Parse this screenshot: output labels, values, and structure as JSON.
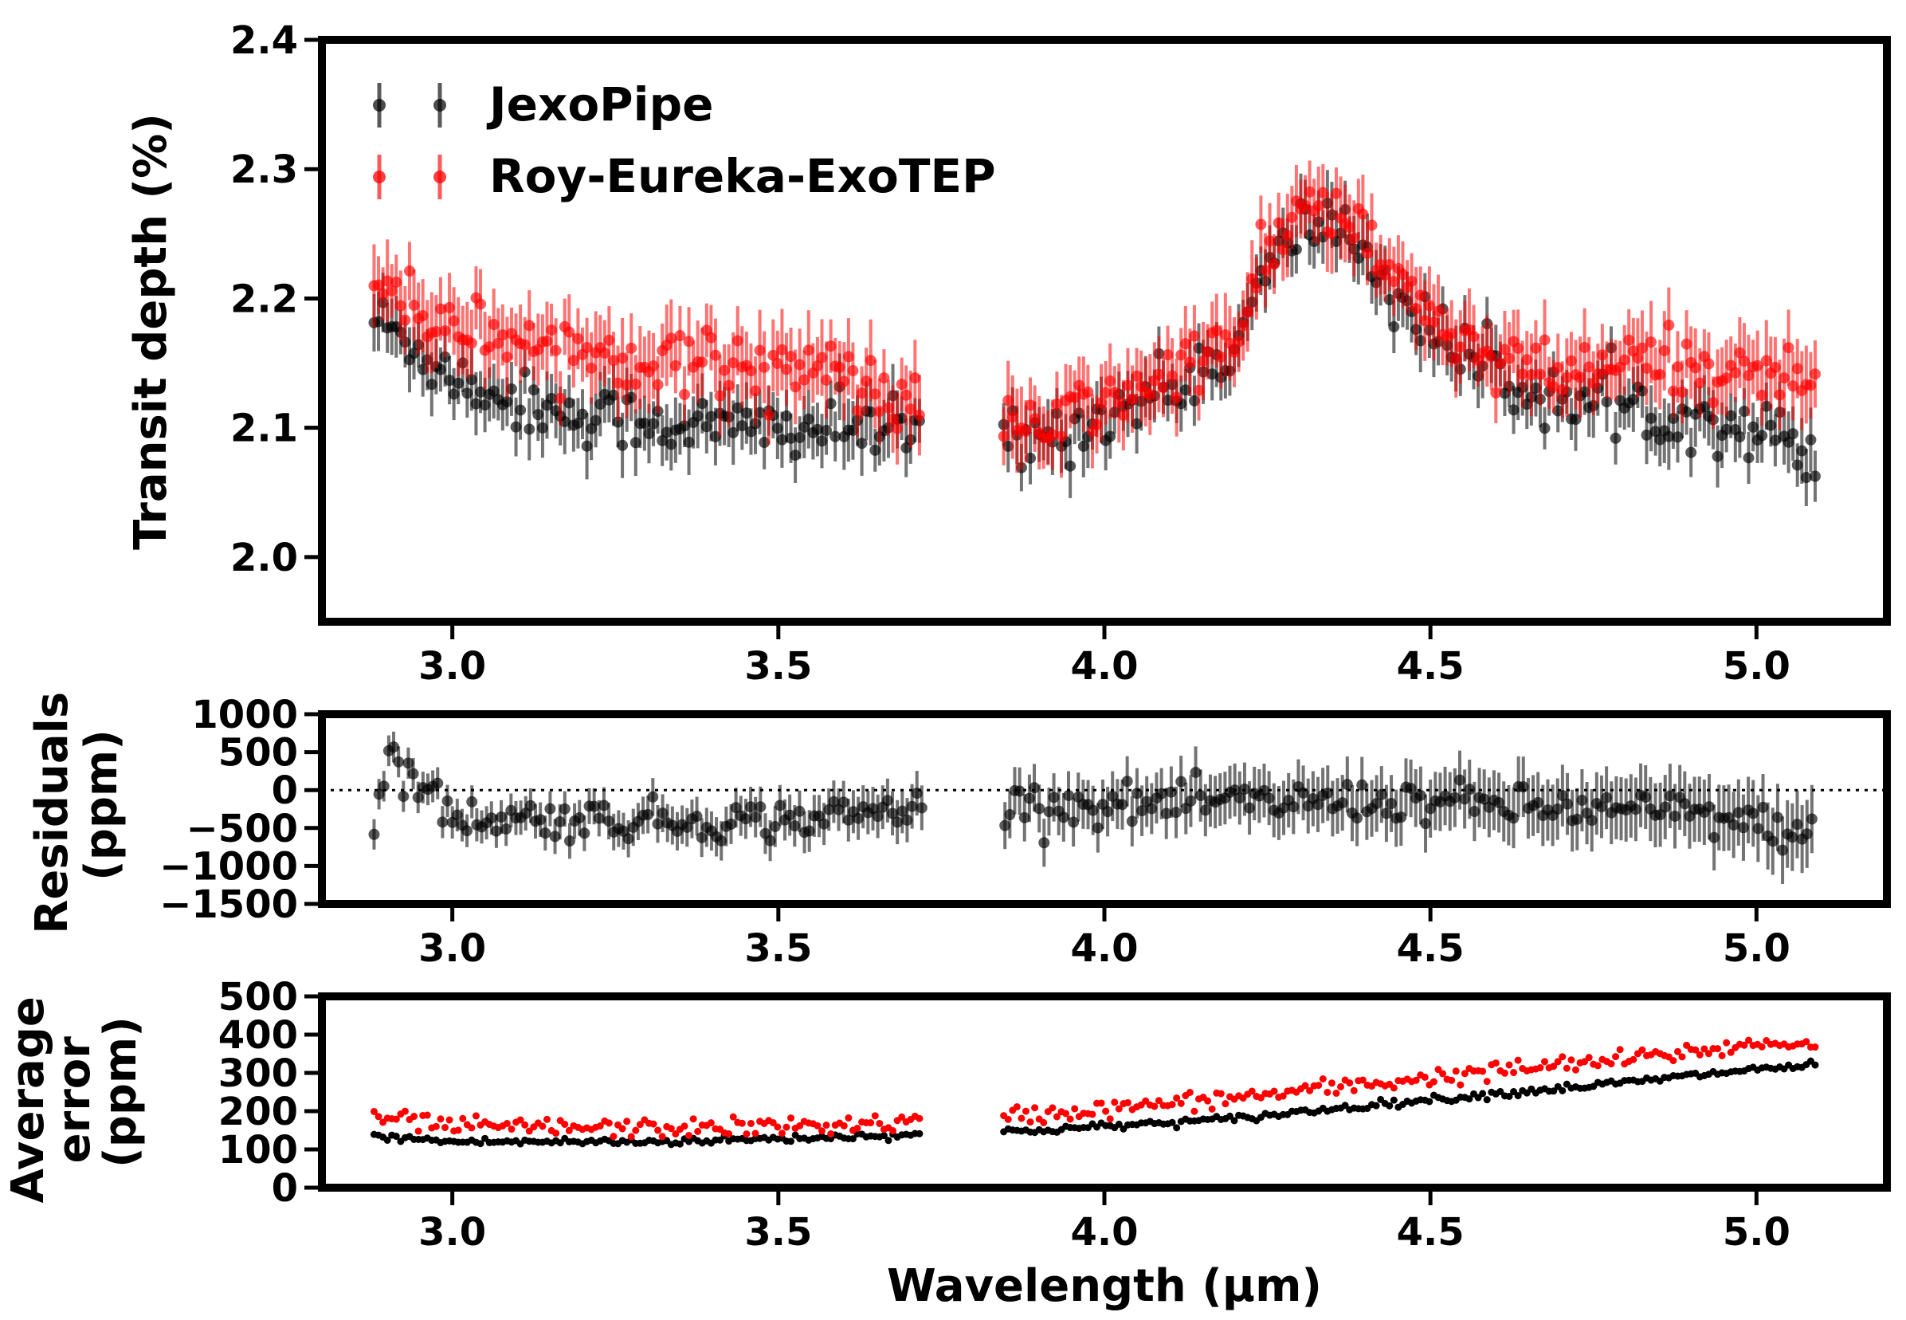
{
  "chart_data": [
    {
      "panel": "top",
      "type": "scatter",
      "ylabel": "Transit depth (%)",
      "xlim": [
        2.8,
        5.2
      ],
      "ylim": [
        1.95,
        2.4
      ],
      "xticks": [
        "3.0",
        "3.5",
        "4.0",
        "4.5",
        "5.0"
      ],
      "xtick_values": [
        3.0,
        3.5,
        4.0,
        4.5,
        5.0
      ],
      "yticks": [
        "2.0",
        "2.1",
        "2.2",
        "2.3",
        "2.4"
      ],
      "ytick_values": [
        2.0,
        2.1,
        2.2,
        2.3,
        2.4
      ],
      "legend_position": "top-left",
      "gap": [
        3.72,
        3.84
      ],
      "series": [
        {
          "name": "JexoPipe",
          "color": "#000000",
          "x_range": [
            2.88,
            5.09
          ],
          "errorbar": 0.02,
          "shape_x": [
            2.88,
            2.95,
            3.0,
            3.1,
            3.2,
            3.3,
            3.4,
            3.5,
            3.6,
            3.71,
            3.84,
            3.9,
            4.0,
            4.1,
            4.2,
            4.25,
            4.3,
            4.35,
            4.4,
            4.45,
            4.5,
            4.6,
            4.7,
            4.8,
            4.9,
            5.0,
            5.09
          ],
          "shape_y": [
            2.185,
            2.16,
            2.14,
            2.12,
            2.11,
            2.105,
            2.1,
            2.1,
            2.1,
            2.095,
            2.09,
            2.09,
            2.11,
            2.13,
            2.16,
            2.22,
            2.255,
            2.26,
            2.235,
            2.2,
            2.175,
            2.14,
            2.12,
            2.115,
            2.11,
            2.1,
            2.08
          ]
        },
        {
          "name": "Roy-Eureka-ExoTEP",
          "color": "#ff0000",
          "x_range": [
            2.88,
            5.09
          ],
          "errorbar": 0.025,
          "shape_x": [
            2.88,
            2.95,
            3.0,
            3.1,
            3.2,
            3.3,
            3.4,
            3.5,
            3.6,
            3.71,
            3.84,
            3.9,
            4.0,
            4.1,
            4.2,
            4.25,
            4.3,
            4.35,
            4.4,
            4.45,
            4.5,
            4.6,
            4.7,
            4.8,
            4.9,
            5.0,
            5.09
          ],
          "shape_y": [
            2.22,
            2.19,
            2.18,
            2.17,
            2.16,
            2.155,
            2.15,
            2.15,
            2.14,
            2.115,
            2.1,
            2.1,
            2.12,
            2.14,
            2.17,
            2.23,
            2.27,
            2.27,
            2.245,
            2.21,
            2.185,
            2.15,
            2.14,
            2.15,
            2.15,
            2.14,
            2.14
          ]
        }
      ]
    },
    {
      "panel": "middle",
      "type": "scatter",
      "ylabel": "Residuals (ppm)",
      "xlim": [
        2.8,
        5.2
      ],
      "ylim": [
        -1500,
        1000
      ],
      "xticks": [
        "3.0",
        "3.5",
        "4.0",
        "4.5",
        "5.0"
      ],
      "xtick_values": [
        3.0,
        3.5,
        4.0,
        4.5,
        5.0
      ],
      "yticks": [
        "1000",
        "500",
        "0",
        "−500",
        "−1000",
        "−1500"
      ],
      "ytick_values": [
        1000,
        500,
        0,
        -500,
        -1000,
        -1500
      ],
      "reference_line": 0,
      "gap": [
        3.72,
        3.84
      ],
      "series": [
        {
          "name": "Residuals",
          "color": "#000000",
          "x_range": [
            2.88,
            5.09
          ],
          "shape_x": [
            2.88,
            2.9,
            3.0,
            3.3,
            3.5,
            3.71,
            3.84,
            4.0,
            4.3,
            4.5,
            4.7,
            4.9,
            5.09
          ],
          "shape_y": [
            -600,
            500,
            -350,
            -400,
            -400,
            -250,
            -150,
            -200,
            -150,
            -150,
            -250,
            -300,
            -600
          ],
          "errorbar_start": 200,
          "errorbar_end": 450
        }
      ]
    },
    {
      "panel": "bottom",
      "type": "scatter",
      "ylabel": "Average error (ppm)",
      "xlabel": "Wavelength (μm)",
      "xlim": [
        2.8,
        5.2
      ],
      "ylim": [
        0,
        500
      ],
      "xticks": [
        "3.0",
        "3.5",
        "4.0",
        "4.5",
        "5.0"
      ],
      "xtick_values": [
        3.0,
        3.5,
        4.0,
        4.5,
        5.0
      ],
      "yticks": [
        "500",
        "400",
        "300",
        "200",
        "100",
        "0"
      ],
      "ytick_values": [
        500,
        400,
        300,
        200,
        100,
        0
      ],
      "gap": [
        3.72,
        3.84
      ],
      "series": [
        {
          "name": "JexoPipe",
          "color": "#000000",
          "x_range": [
            2.88,
            5.09
          ],
          "shape_x": [
            2.88,
            3.0,
            3.3,
            3.5,
            3.71,
            3.84,
            4.0,
            4.2,
            4.4,
            4.6,
            4.8,
            5.0,
            5.09
          ],
          "shape_y": [
            135,
            120,
            120,
            128,
            140,
            145,
            160,
            180,
            215,
            245,
            275,
            310,
            320
          ]
        },
        {
          "name": "Roy-Eureka-ExoTEP",
          "color": "#ff0000",
          "x_range": [
            2.88,
            5.09
          ],
          "shape_x": [
            2.88,
            3.0,
            3.3,
            3.5,
            3.71,
            3.84,
            4.0,
            4.2,
            4.4,
            4.6,
            4.8,
            5.0,
            5.09
          ],
          "shape_y": [
            185,
            160,
            155,
            160,
            170,
            185,
            205,
            235,
            270,
            305,
            335,
            375,
            380
          ]
        }
      ]
    }
  ]
}
